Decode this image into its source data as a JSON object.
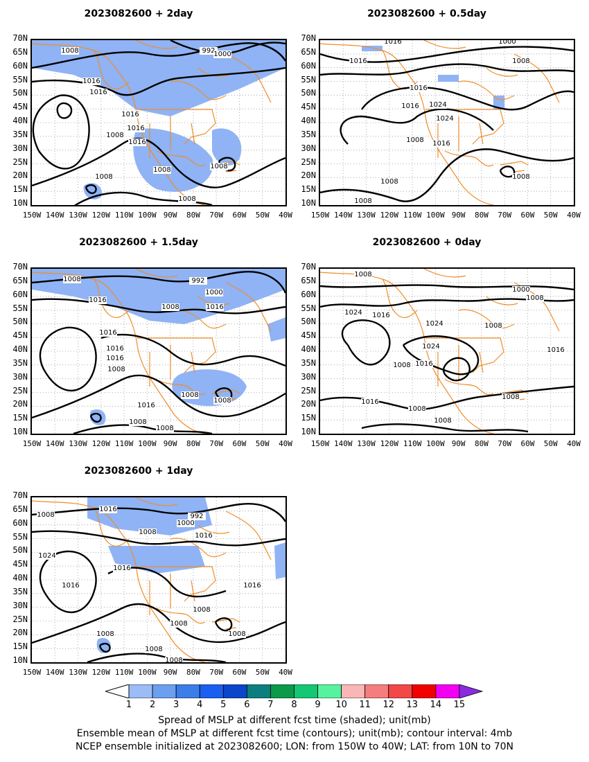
{
  "panels": [
    {
      "title": "2023082600  +  2day"
    },
    {
      "title": "2023082600  +  0.5day"
    },
    {
      "title": "2023082600  +  1.5day"
    },
    {
      "title": "2023082600  +  0day"
    },
    {
      "title": "2023082600  +  1day"
    }
  ],
  "lat_labels": [
    "70N",
    "65N",
    "60N",
    "55N",
    "50N",
    "45N",
    "40N",
    "35N",
    "30N",
    "25N",
    "20N",
    "15N",
    "10N"
  ],
  "lon_labels": [
    "150W",
    "140W",
    "130W",
    "120W",
    "110W",
    "100W",
    "90W",
    "80W",
    "70W",
    "60W",
    "50W",
    "40W"
  ],
  "contour_labels": {
    "p0": [
      "1008",
      "992",
      "1000",
      "1016",
      "1016",
      "1016",
      "1016",
      "1008",
      "1016",
      "1008",
      "1008",
      "1008",
      "1008"
    ],
    "p1": [
      "1016",
      "1000",
      "1008",
      "1016",
      "1016",
      "1024",
      "1024",
      "1016",
      "1008",
      "1016",
      "1008",
      "1008",
      "1008"
    ],
    "p2": [
      "1008",
      "1016",
      "992",
      "1000",
      "1016",
      "1008",
      "1016",
      "1016",
      "1016",
      "1008",
      "1016",
      "1008",
      "1008",
      "1008",
      "1008"
    ],
    "p3": [
      "1008",
      "1000",
      "1008",
      "1024",
      "1016",
      "1024",
      "1008",
      "1024",
      "1008",
      "1016",
      "1016",
      "1008",
      "1008",
      "1008",
      "1016"
    ],
    "p4": [
      "1008",
      "1016",
      "992",
      "1000",
      "1008",
      "1016",
      "1024",
      "1016",
      "1016",
      "1016",
      "1008",
      "1008",
      "1008",
      "1008",
      "1008",
      "1008"
    ]
  },
  "colorbar": {
    "ticks": [
      "1",
      "2",
      "3",
      "4",
      "5",
      "6",
      "7",
      "8",
      "9",
      "10",
      "11",
      "12",
      "13",
      "14",
      "15"
    ],
    "colors": [
      "#9bbcf5",
      "#6b9ff0",
      "#3c7ee8",
      "#1a5ff0",
      "#0a46c9",
      "#0b7f80",
      "#0c9a4a",
      "#13c774",
      "#57f2a0",
      "#f9b6b6",
      "#f67d7d",
      "#f24848",
      "#f20000",
      "#f200f2",
      "#8a2be2"
    ]
  },
  "caption": {
    "line1": "Spread of MSLP at different fcst time (shaded); unit(mb)",
    "line2": "Ensemble mean of MSLP at different fcst time (contours); unit(mb); contour interval: 4mb",
    "line3": "NCEP ensemble initialized at 2023082600; LON: from 150W to 40W; LAT: from 10N to 70N"
  },
  "colors": {
    "coast": "#f08c28",
    "shading": "#8fb3f4",
    "contour": "#000000"
  }
}
